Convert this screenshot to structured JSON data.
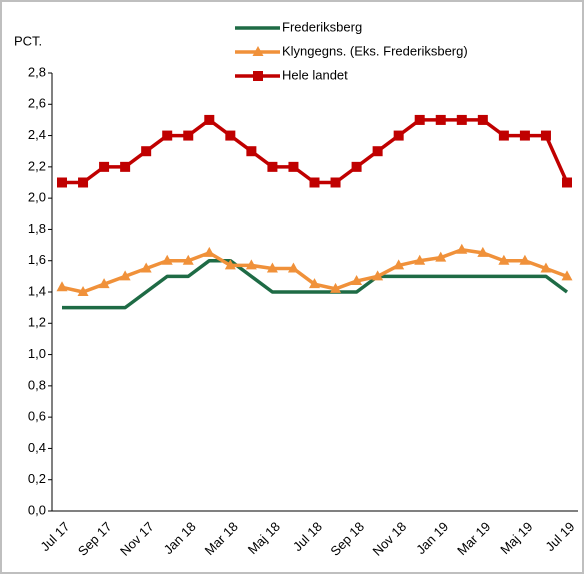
{
  "chart_data": {
    "type": "line",
    "unit_label": "PCT.",
    "categories": [
      "Jul 17",
      null,
      "Sep 17",
      null,
      "Nov 17",
      null,
      "Jan 18",
      null,
      "Mar 18",
      null,
      "Maj 18",
      null,
      "Jul 18",
      null,
      "Sep 18",
      null,
      "Nov 18",
      null,
      "Jan 19",
      null,
      "Mar 19",
      null,
      "Maj 19",
      null,
      "Jul 19"
    ],
    "series": [
      {
        "name": "Frederiksberg",
        "color": "#1e6b45",
        "marker": "none",
        "values": [
          1.3,
          1.3,
          1.3,
          1.3,
          1.4,
          1.5,
          1.5,
          1.6,
          1.6,
          1.5,
          1.4,
          1.4,
          1.4,
          1.4,
          1.4,
          1.5,
          1.5,
          1.5,
          1.5,
          1.5,
          1.5,
          1.5,
          1.5,
          1.5,
          1.4
        ]
      },
      {
        "name": "Klyngegns. (Eks. Frederiksberg)",
        "color": "#f0913a",
        "marker": "triangle",
        "values": [
          1.43,
          1.4,
          1.45,
          1.5,
          1.55,
          1.6,
          1.6,
          1.65,
          1.57,
          1.57,
          1.55,
          1.55,
          1.45,
          1.42,
          1.47,
          1.5,
          1.57,
          1.6,
          1.62,
          1.67,
          1.65,
          1.6,
          1.6,
          1.55,
          1.5
        ]
      },
      {
        "name": "Hele landet",
        "color": "#c00000",
        "marker": "square",
        "values": [
          2.1,
          2.1,
          2.2,
          2.2,
          2.3,
          2.4,
          2.4,
          2.5,
          2.4,
          2.3,
          2.2,
          2.2,
          2.1,
          2.1,
          2.2,
          2.3,
          2.4,
          2.5,
          2.5,
          2.5,
          2.5,
          2.4,
          2.4,
          2.4,
          2.1
        ]
      }
    ],
    "ylim": [
      0,
      2.8
    ],
    "yticks": [
      {
        "value": 0,
        "label": "0,0"
      },
      {
        "value": 0.2,
        "label": "0,2"
      },
      {
        "value": 0.4,
        "label": "0,4"
      },
      {
        "value": 0.6,
        "label": "0,6"
      },
      {
        "value": 0.8,
        "label": "0,8"
      },
      {
        "value": 1.0,
        "label": "1,0"
      },
      {
        "value": 1.2,
        "label": "1,2"
      },
      {
        "value": 1.4,
        "label": "1,4"
      },
      {
        "value": 1.6,
        "label": "1,6"
      },
      {
        "value": 1.8,
        "label": "1,8"
      },
      {
        "value": 2.0,
        "label": "2,0"
      },
      {
        "value": 2.2,
        "label": "2,2"
      },
      {
        "value": 2.4,
        "label": "2,4"
      },
      {
        "value": 2.6,
        "label": "2,6"
      },
      {
        "value": 2.8,
        "label": "2,8"
      }
    ],
    "grid": false,
    "legend": "top"
  }
}
